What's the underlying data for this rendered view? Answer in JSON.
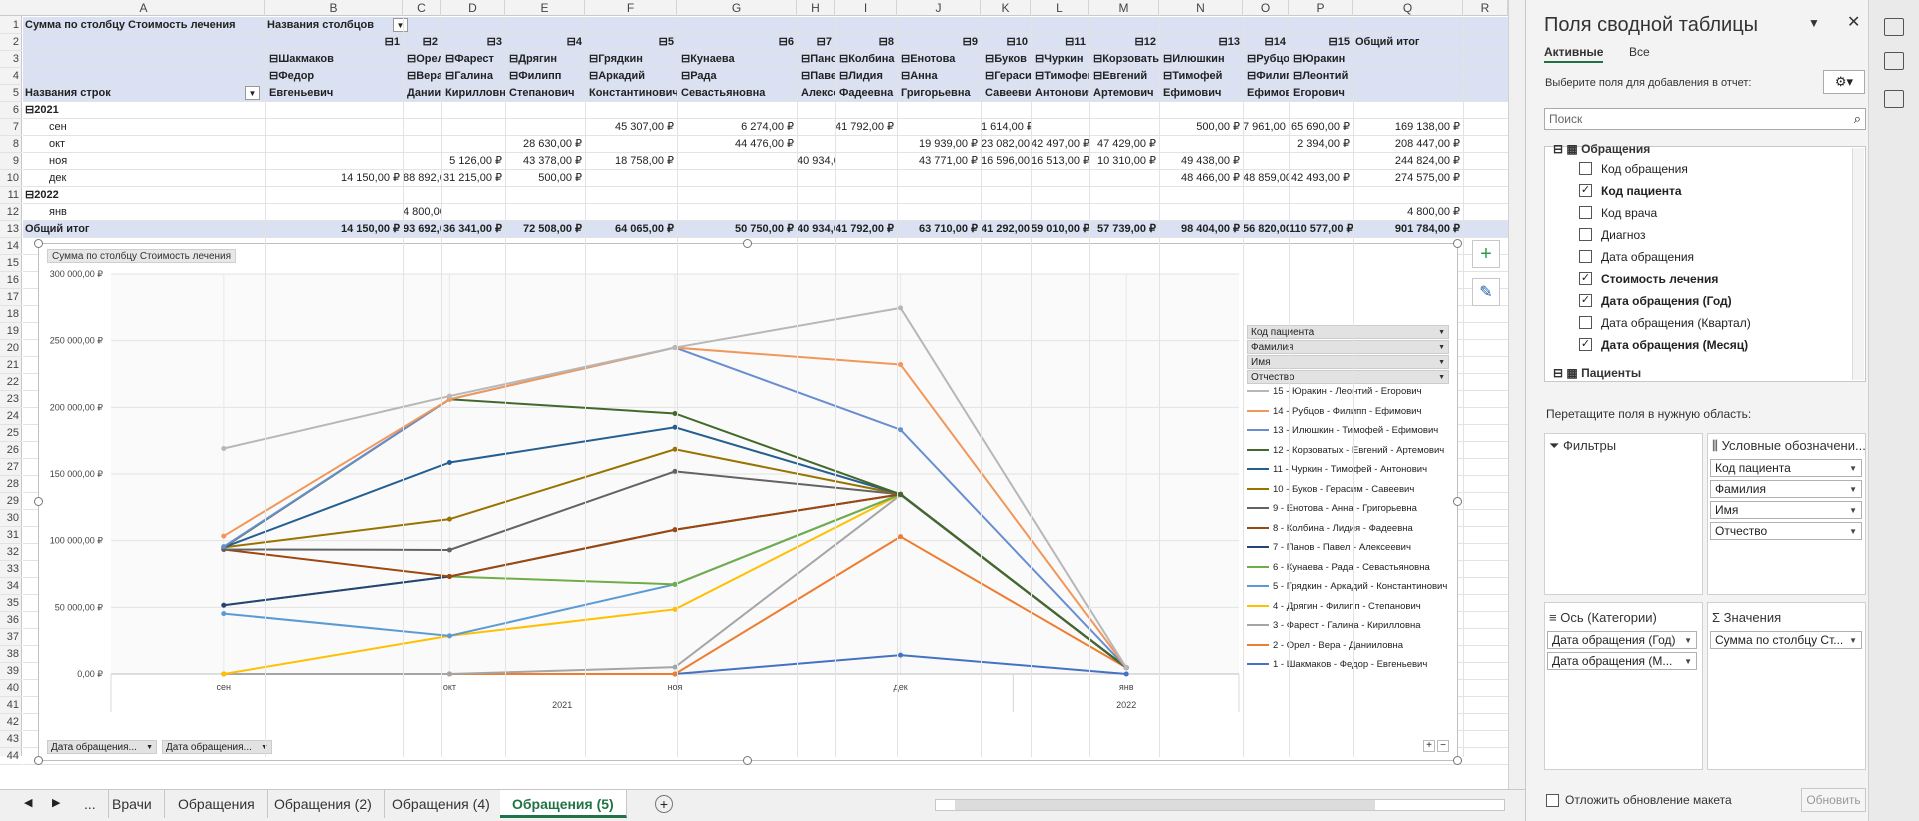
{
  "columns": [
    "A",
    "B",
    "C",
    "D",
    "E",
    "F",
    "G",
    "H",
    "I",
    "J",
    "K",
    "L",
    "M",
    "N",
    "O",
    "P",
    "Q",
    "R"
  ],
  "rows": [
    "1",
    "2",
    "3",
    "4",
    "5",
    "6",
    "7",
    "8",
    "9",
    "10",
    "11",
    "12",
    "13",
    "14",
    "15",
    "16",
    "17",
    "18",
    "19",
    "20",
    "21",
    "22",
    "23",
    "24",
    "25",
    "26",
    "27",
    "28",
    "29",
    "30",
    "31",
    "32",
    "33",
    "34",
    "35",
    "36",
    "37",
    "38",
    "39",
    "40",
    "41",
    "42",
    "43",
    "44"
  ],
  "pivot": {
    "title": "Сумма по столбцу Стоимость лечения",
    "col_label": "Названия столбцов",
    "row_label": "Названия строк",
    "codes": [
      "1",
      "2",
      "3",
      "4",
      "5",
      "6",
      "7",
      "8",
      "9",
      "10",
      "11",
      "12",
      "13",
      "14",
      "15"
    ],
    "surnames": [
      "Шакмаков",
      "Орел",
      "Фарест",
      "Дрягин",
      "Грядкин",
      "Кунаева",
      "Панов",
      "Колбина",
      "Енотова",
      "Буков",
      "Чуркин",
      "Корзоватых",
      "Илюшкин",
      "Рубцов",
      "Юракин"
    ],
    "names": [
      "Федор",
      "Вера",
      "Галина",
      "Филипп",
      "Аркадий",
      "Рада",
      "Павел",
      "Лидия",
      "Анна",
      "Герасим",
      "Тимофей",
      "Евгений",
      "Тимофей",
      "Филипп",
      "Леонтий"
    ],
    "patronymics": [
      "Евгеньевич",
      "Данииловна",
      "Кирилловна",
      "Степанович",
      "Константинович",
      "Севастьяновна",
      "Алексеевич",
      "Фадеевна",
      "Григорьевна",
      "Савеевич",
      "Антонович",
      "Артемович",
      "Ефимович",
      "Ефимович",
      "Егорович"
    ],
    "total_label": "Общий итог",
    "year1": "2021",
    "year2": "2022",
    "months": [
      "сен",
      "окт",
      "ноя",
      "дек",
      "янв"
    ],
    "data": [
      [
        "",
        "",
        "",
        "",
        "45 307,00 ₽",
        "6 274,00 ₽",
        "",
        "41 792,00 ₽",
        "",
        "1 614,00 ₽",
        "",
        "",
        "500,00 ₽",
        "7 961,00 ₽",
        "65 690,00 ₽",
        "169 138,00 ₽"
      ],
      [
        "",
        "",
        "",
        "28 630,00 ₽",
        "",
        "44 476,00 ₽",
        "",
        "",
        "19 939,00 ₽",
        "23 082,00 ₽",
        "42 497,00 ₽",
        "47 429,00 ₽",
        "",
        "",
        "2 394,00 ₽",
        "208 447,00 ₽"
      ],
      [
        "",
        "",
        "5 126,00 ₽",
        "43 378,00 ₽",
        "18 758,00 ₽",
        "",
        "40 934,00 ₽",
        "",
        "43 771,00 ₽",
        "16 596,00 ₽",
        "16 513,00 ₽",
        "10 310,00 ₽",
        "49 438,00 ₽",
        "",
        "",
        "244 824,00 ₽"
      ],
      [
        "14 150,00 ₽",
        "88 892,00 ₽",
        "31 215,00 ₽",
        "500,00 ₽",
        "",
        "",
        "",
        "",
        "",
        "",
        "",
        "",
        "48 466,00 ₽",
        "48 859,00 ₽",
        "42 493,00 ₽",
        "274 575,00 ₽"
      ],
      [
        "",
        "4 800,00 ₽",
        "",
        "",
        "",
        "",
        "",
        "",
        "",
        "",
        "",
        "",
        "",
        "",
        "",
        "4 800,00 ₽"
      ]
    ],
    "totals": [
      "14 150,00 ₽",
      "93 692,00 ₽",
      "36 341,00 ₽",
      "72 508,00 ₽",
      "64 065,00 ₽",
      "50 750,00 ₽",
      "40 934,00 ₽",
      "41 792,00 ₽",
      "63 710,00 ₽",
      "41 292,00 ₽",
      "59 010,00 ₽",
      "57 739,00 ₽",
      "98 404,00 ₽",
      "56 820,00 ₽",
      "110 577,00 ₽",
      "901 784,00 ₽"
    ]
  },
  "chart_data": {
    "type": "line",
    "stacked": true,
    "title_button": "Сумма по столбцу Стоимость лечения",
    "categories": [
      "сен",
      "окт",
      "ноя",
      "дек",
      "янв"
    ],
    "category_groups": [
      {
        "label": "2021",
        "span": 4
      },
      {
        "label": "2022",
        "span": 1
      }
    ],
    "ylim": [
      0,
      300000
    ],
    "y_ticks": [
      "0,00 ₽",
      "50 000,00 ₽",
      "100 000,00 ₽",
      "150 000,00 ₽",
      "200 000,00 ₽",
      "250 000,00 ₽",
      "300 000,00 ₽"
    ],
    "legend_position": "right",
    "legend_fields": [
      "Код пациента",
      "Фамилия",
      "Имя",
      "Отчество"
    ],
    "axis_field_buttons": [
      "Дата обращения...",
      "Дата обращения..."
    ],
    "series": [
      {
        "name": "1 - Шакмаков - Федор - Евгеньевич",
        "color": "#4472c4",
        "values": [
          0,
          0,
          0,
          14150,
          0
        ]
      },
      {
        "name": "2 - Орел - Вера - Данииловна",
        "color": "#ed7d31",
        "values": [
          0,
          0,
          0,
          88892,
          4800
        ]
      },
      {
        "name": "3 - Фарест - Галина - Кирилловна",
        "color": "#a5a5a5",
        "values": [
          0,
          0,
          5126,
          31215,
          0
        ]
      },
      {
        "name": "4 - Дрягин - Филипп - Степанович",
        "color": "#ffc000",
        "values": [
          0,
          28630,
          43378,
          500,
          0
        ]
      },
      {
        "name": "5 - Грядкин - Аркадий - Константинович",
        "color": "#5b9bd5",
        "values": [
          45307,
          0,
          18758,
          0,
          0
        ]
      },
      {
        "name": "6 - Кунаева - Рада - Севастьяновна",
        "color": "#70ad47",
        "values": [
          6274,
          44476,
          0,
          0,
          0
        ]
      },
      {
        "name": "7 - Панов - Павел - Алексеевич",
        "color": "#264478",
        "values": [
          0,
          0,
          40934,
          0,
          0
        ]
      },
      {
        "name": "8 - Колбина - Лидия - Фадеевна",
        "color": "#9e480e",
        "values": [
          41792,
          0,
          0,
          0,
          0
        ]
      },
      {
        "name": "9 - Енотова - Анна - Григорьевна",
        "color": "#636363",
        "values": [
          0,
          19939,
          43771,
          0,
          0
        ]
      },
      {
        "name": "10 - Буков - Герасим - Савеевич",
        "color": "#997300",
        "values": [
          1614,
          23082,
          16596,
          0,
          0
        ]
      },
      {
        "name": "11 - Чуркин - Тимофей - Антонович",
        "color": "#255e91",
        "values": [
          0,
          42497,
          16513,
          0,
          0
        ]
      },
      {
        "name": "12 - Корзоватых - Евгений - Артемович",
        "color": "#43682b",
        "values": [
          0,
          47429,
          10310,
          0,
          0
        ]
      },
      {
        "name": "13 - Илюшкин - Тимофей - Ефимович",
        "color": "#698ed0",
        "values": [
          500,
          0,
          49438,
          48466,
          0
        ]
      },
      {
        "name": "14 - Рубцов - Филипп - Ефимович",
        "color": "#f1975a",
        "values": [
          7961,
          0,
          0,
          48859,
          0
        ]
      },
      {
        "name": "15 - Юракин - Леонтий - Егорович",
        "color": "#b7b7b7",
        "values": [
          65690,
          2394,
          0,
          42493,
          0
        ]
      }
    ]
  },
  "sheet_tabs": [
    "...",
    "Врачи",
    "Обращения",
    "Обращения (2)",
    "Обращения (4)",
    "Обращения (5)"
  ],
  "active_tab": "Обращения (5)",
  "pane": {
    "title": "Поля сводной таблицы",
    "tab_active": "Активные",
    "tab_all": "Все",
    "choose_text": "Выберите поля для добавления в отчет:",
    "search_placeholder": "Поиск",
    "table1": "Обращения",
    "fields": [
      {
        "label": "Код обращения",
        "checked": false
      },
      {
        "label": "Код пациента",
        "checked": true
      },
      {
        "label": "Код врача",
        "checked": false
      },
      {
        "label": "Диагноз",
        "checked": false
      },
      {
        "label": "Дата обращения",
        "checked": false
      },
      {
        "label": "Стоимость лечения",
        "checked": true
      },
      {
        "label": "Дата обращения (Год)",
        "checked": true
      },
      {
        "label": "Дата обращения (Квартал)",
        "checked": false
      },
      {
        "label": "Дата обращения (Месяц)",
        "checked": true
      }
    ],
    "table2": "Пациенты",
    "drag_text": "Перетащите поля в нужную область:",
    "filters_label": "Фильтры",
    "legend_label": "Условные обозначени...",
    "legend_items": [
      "Код пациента",
      "Фамилия",
      "Имя",
      "Отчество"
    ],
    "axis_label": "Ось (Категории)",
    "axis_items": [
      "Дата обращения (Год)",
      "Дата обращения (М..."
    ],
    "values_label": "Значения",
    "values_items": [
      "Сумма по столбцу Ст..."
    ],
    "defer_label": "Отложить обновление макета",
    "update_label": "Обновить"
  }
}
